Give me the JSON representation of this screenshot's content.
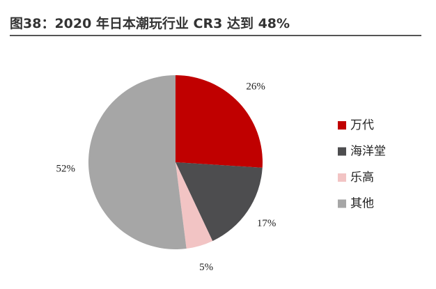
{
  "chart_data": {
    "type": "pie",
    "title": "图38：2020 年日本潮玩行业 CR3 达到 48%",
    "categories": [
      "万代",
      "海洋堂",
      "乐高",
      "其他"
    ],
    "values": [
      26,
      17,
      5,
      52
    ],
    "value_labels": [
      "26%",
      "17%",
      "5%",
      "52%"
    ],
    "colors": [
      "#c00000",
      "#4d4d4f",
      "#f2c4c4",
      "#a6a6a6"
    ],
    "legend": "right"
  }
}
